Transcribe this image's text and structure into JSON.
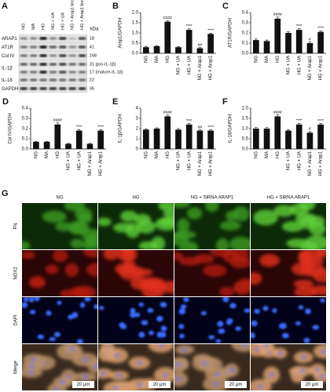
{
  "blot": {
    "panel": "A",
    "lanes": [
      "NG",
      "MA",
      "HG",
      "NG + UA",
      "HG + UA",
      "NG + Arap1 knockdown",
      "HG + Arap1 knockdown"
    ],
    "kda_header": "kDa",
    "rows": [
      {
        "protein": "ARAP1",
        "kda": [
          "18"
        ]
      },
      {
        "protein": "AT1R",
        "kda": [
          "41"
        ]
      },
      {
        "protein": "Col IV",
        "kda": [
          "168"
        ]
      },
      {
        "protein": "IL-1β",
        "kda": [
          "31 (pro-IL-1β)",
          "17 (mature-IL-1β)"
        ]
      },
      {
        "protein": "IL-18",
        "kda": [
          "22"
        ]
      },
      {
        "protein": "GAPDH",
        "kda": [
          "36"
        ]
      }
    ]
  },
  "chart_data": [
    {
      "type": "bar",
      "panel": "B",
      "ylabel": "Arap1/GAPDH",
      "color": "#111111",
      "categories": [
        "NG",
        "MA",
        "HG",
        "NG + UA",
        "HG + UA",
        "NG + Arap1",
        "HG + Arap1"
      ],
      "values": [
        0.3,
        0.35,
        1.55,
        0.3,
        1.15,
        0.25,
        0.95
      ],
      "errors": [
        0.03,
        0.03,
        0.05,
        0.03,
        0.05,
        0.03,
        0.04
      ],
      "significance": [
        null,
        null,
        "####",
        null,
        "****",
        "##",
        "****"
      ],
      "ylim": [
        0,
        2
      ],
      "yticks": [
        {
          "value": 0,
          "label": "0.0"
        },
        0.5,
        {
          "value": 1,
          "label": "1.0"
        },
        1.5,
        {
          "value": 2,
          "label": "2.0"
        }
      ]
    },
    {
      "type": "bar",
      "panel": "C",
      "ylabel": "AT1R/GAPDH",
      "color": "#111111",
      "categories": [
        "NG",
        "MA",
        "HG",
        "NG + UA",
        "HG + UA",
        "NG + Arap1",
        "HG + Arap1"
      ],
      "values": [
        0.13,
        0.12,
        0.34,
        0.2,
        0.23,
        0.1,
        0.21
      ],
      "errors": [
        0.01,
        0.01,
        0.015,
        0.01,
        0.012,
        0.01,
        0.01
      ],
      "significance": [
        null,
        null,
        "####",
        null,
        "****",
        "#",
        "****"
      ],
      "ylim": [
        0,
        0.4
      ],
      "yticks": [
        {
          "value": 0,
          "label": "0.0"
        },
        0.1,
        0.2,
        0.3,
        0.4
      ]
    },
    {
      "type": "bar",
      "panel": "D",
      "ylabel": "Col IV/GAPDH",
      "color": "#111111",
      "categories": [
        "NG",
        "MA",
        "HG",
        "NG + UA",
        "HG + UA",
        "NG + Arap1",
        "HG + Arap1"
      ],
      "values": [
        0.07,
        0.07,
        0.24,
        0.05,
        0.18,
        0.05,
        0.18
      ],
      "errors": [
        0.005,
        0.005,
        0.015,
        0.005,
        0.01,
        0.005,
        0.01
      ],
      "significance": [
        null,
        null,
        "####",
        null,
        "****",
        null,
        "****"
      ],
      "ylim": [
        0,
        0.4
      ],
      "yticks": [
        {
          "value": 0,
          "label": "0.0"
        },
        0.1,
        0.2,
        0.3,
        0.4
      ]
    },
    {
      "type": "bar",
      "panel": "E",
      "ylabel": "IL-1β/GAPDH",
      "color": "#111111",
      "categories": [
        "NG",
        "MA",
        "HG",
        "NG + UA",
        "HG + UA",
        "NG + Arap1",
        "HG + Arap1"
      ],
      "values": [
        1.9,
        2.0,
        3.2,
        1.9,
        2.4,
        1.8,
        1.8
      ],
      "errors": [
        0.08,
        0.08,
        0.12,
        0.1,
        0.1,
        0.08,
        0.08
      ],
      "significance": [
        null,
        null,
        "####",
        null,
        "****",
        "##",
        "****"
      ],
      "ylim": [
        0,
        4
      ],
      "yticks": [
        0,
        1,
        2,
        3,
        4
      ]
    },
    {
      "type": "bar",
      "panel": "F",
      "ylabel": "IL-18/GAPDH",
      "color": "#111111",
      "categories": [
        "NG",
        "MA",
        "HG",
        "NG + UA",
        "HG + UA",
        "NG + Arap1",
        "HG + Arap1"
      ],
      "values": [
        1.0,
        1.0,
        1.6,
        0.9,
        1.2,
        0.8,
        1.2
      ],
      "errors": [
        0.05,
        0.05,
        0.07,
        0.05,
        0.06,
        0.05,
        0.05
      ],
      "significance": [
        null,
        null,
        "####",
        null,
        "****",
        "#",
        "****"
      ],
      "ylim": [
        0,
        2
      ],
      "yticks": [
        {
          "value": 0,
          "label": "0.0"
        },
        0.5,
        {
          "value": 1,
          "label": "1.0"
        },
        1.5,
        {
          "value": 2,
          "label": "2.0"
        }
      ]
    }
  ],
  "microscopy": {
    "panel": "G",
    "columns": [
      "NG",
      "HG",
      "NG + SiRNA ARAP1",
      "HG + SiRNA ARAP1"
    ],
    "rows": [
      "FN",
      "NOX2",
      "DAPI",
      "Merge"
    ],
    "scale_bars": [
      "20 μm",
      "20 μm",
      "20 μm",
      "20 μm"
    ]
  }
}
